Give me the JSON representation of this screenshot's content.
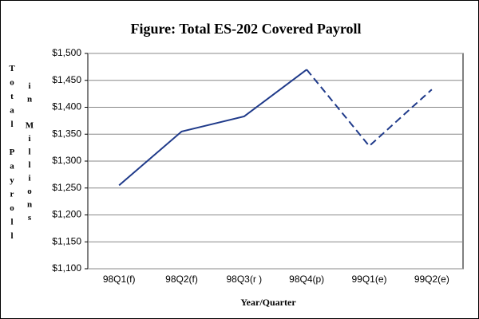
{
  "chart_data": {
    "type": "line",
    "title": "Figure:  Total ES-202 Covered Payroll",
    "x_label": "Year/Quarter",
    "y_label": "Total Payroll",
    "y_label_unit": "in Millions",
    "categories": [
      "98Q1(f)",
      "98Q2(f)",
      "98Q3(r )",
      "98Q4(p)",
      "99Q1(e)",
      "99Q2(e)"
    ],
    "values": [
      1255,
      1355,
      1383,
      1470,
      1328,
      1433
    ],
    "dashed_from_index": 3,
    "color": "#1f3a8a",
    "ylim": [
      1100,
      1500
    ],
    "yticks": [
      {
        "value": 1100,
        "label": "$1,100"
      },
      {
        "value": 1150,
        "label": "$1,150"
      },
      {
        "value": 1200,
        "label": "$1,200"
      },
      {
        "value": 1250,
        "label": "$1,250"
      },
      {
        "value": 1300,
        "label": "$1,300"
      },
      {
        "value": 1350,
        "label": "$1,350"
      },
      {
        "value": 1400,
        "label": "$1,400"
      },
      {
        "value": 1450,
        "label": "$1,450"
      },
      {
        "value": 1500,
        "label": "$1,500"
      }
    ],
    "grid": true
  }
}
